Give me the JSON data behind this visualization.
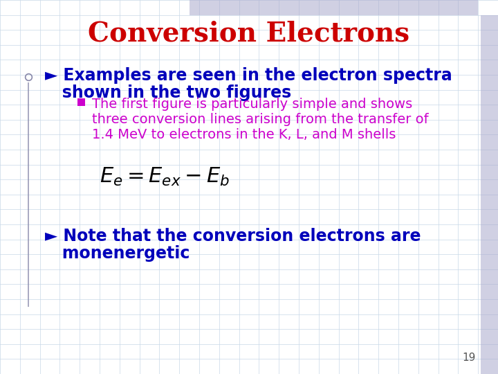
{
  "title": "Conversion Electrons",
  "title_color": "#CC0000",
  "title_fontsize": 28,
  "bg_color": "#FFFFFF",
  "grid_color": "#C8D8E8",
  "bullet1_line1": "► Examples are seen in the electron spectra",
  "bullet1_line2": "   shown in the two figures",
  "bullet1_color": "#0000BB",
  "bullet1_fontsize": 17,
  "sub_bullet_color": "#CC00CC",
  "sub_bullet_fontsize": 14,
  "sub_bullet_line1": "The first figure is particularly simple and shows",
  "sub_bullet_line2": "three conversion lines arising from the transfer of",
  "sub_bullet_line3": "1.4 MeV to electrons in the K, L, and M shells",
  "formula": "$E_e = E_{ex} - E_b$",
  "formula_fontsize": 22,
  "formula_color": "#000000",
  "bullet2_line1": "► Note that the conversion electrons are",
  "bullet2_line2": "   monenergetic",
  "bullet2_color": "#0000BB",
  "bullet2_fontsize": 17,
  "page_number": "19",
  "page_number_color": "#555555",
  "page_number_fontsize": 11,
  "top_bar_color": "#AAAACC",
  "right_bar_color": "#AAAACC",
  "left_line_color": "#8888AA"
}
